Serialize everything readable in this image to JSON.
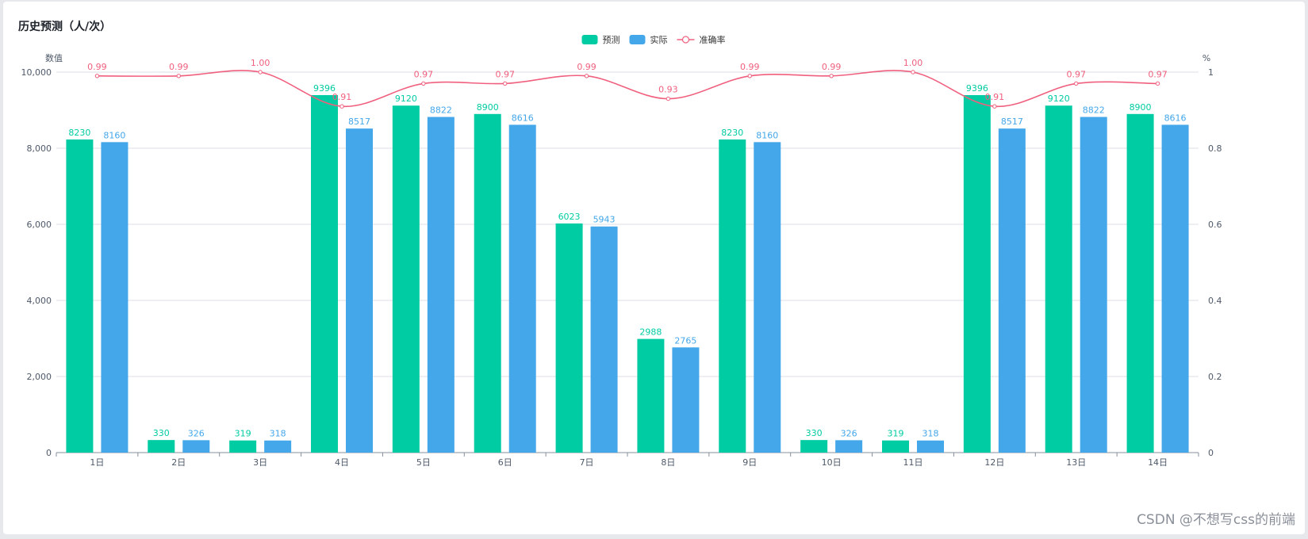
{
  "page": {
    "title": "历史预测（人/次）",
    "watermark": "CSDN @不想写css的前端"
  },
  "chart_data": {
    "type": "bar",
    "categories": [
      "1日",
      "2日",
      "3日",
      "4日",
      "5日",
      "6日",
      "7日",
      "8日",
      "9日",
      "10日",
      "11日",
      "12日",
      "13日",
      "14日"
    ],
    "series": [
      {
        "name": "预测",
        "kind": "bar",
        "axis": "left",
        "color": "#00cca3",
        "values": [
          8230,
          330,
          319,
          9396,
          9120,
          8900,
          6023,
          2988,
          8230,
          330,
          319,
          9396,
          9120,
          8900
        ]
      },
      {
        "name": "实际",
        "kind": "bar",
        "axis": "left",
        "color": "#44a7ea",
        "values": [
          8160,
          326,
          318,
          8517,
          8822,
          8616,
          5943,
          2765,
          8160,
          326,
          318,
          8517,
          8822,
          8616
        ]
      },
      {
        "name": "准确率",
        "kind": "line",
        "smooth": true,
        "axis": "right",
        "color": "#f0607e",
        "values": [
          0.99,
          0.99,
          1.0,
          0.91,
          0.97,
          0.97,
          0.99,
          0.93,
          0.99,
          0.99,
          1.0,
          0.91,
          0.97,
          0.97
        ]
      }
    ],
    "y_left": {
      "label": "数值",
      "min": 0,
      "max": 10000,
      "ticks": [
        0,
        2000,
        4000,
        6000,
        8000,
        10000
      ],
      "tick_labels": [
        "0",
        "2,000",
        "4,000",
        "6,000",
        "8,000",
        "10,000"
      ]
    },
    "y_right": {
      "label": "%",
      "min": 0,
      "max": 1,
      "ticks": [
        0,
        0.2,
        0.4,
        0.6,
        0.8,
        1
      ],
      "tick_labels": [
        "0",
        "0.2",
        "0.4",
        "0.6",
        "0.8",
        "1"
      ]
    },
    "grid": true,
    "legend": "top-center",
    "data_labels": true
  }
}
